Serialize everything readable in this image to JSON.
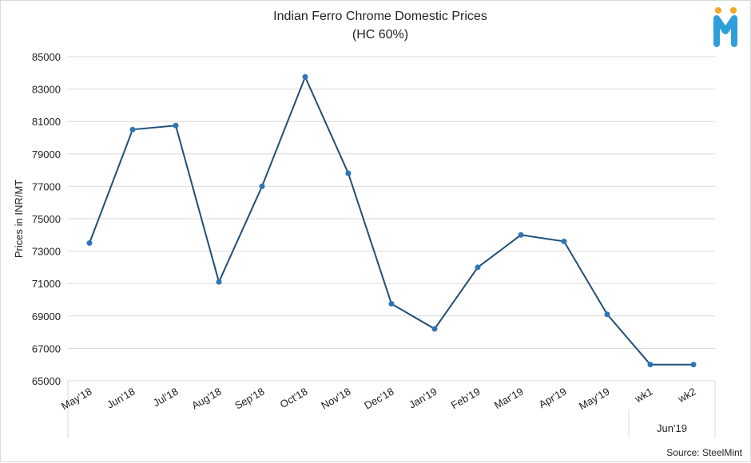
{
  "chart_data": {
    "type": "line",
    "title": "Indian Ferro Chrome Domestic Prices",
    "subtitle": "(HC 60%)",
    "ylabel": "Prices in INR/MT",
    "xlabel": "",
    "ylim": [
      65000,
      85000
    ],
    "yticks": [
      65000,
      67000,
      69000,
      71000,
      73000,
      75000,
      77000,
      79000,
      81000,
      83000,
      85000
    ],
    "grid": true,
    "categories": [
      "May'18",
      "Jun'18",
      "Jul'18",
      "Aug'18",
      "Sep'18",
      "Oct'18",
      "Nov'18",
      "Dec'18",
      "Jan'19",
      "Feb'19",
      "Mar'19",
      "Apr'19",
      "May'19",
      "wk1",
      "wk2"
    ],
    "category_group": {
      "label": "Jun'19",
      "members": [
        "wk1",
        "wk2"
      ]
    },
    "values": [
      73500,
      80500,
      80750,
      71100,
      77000,
      83750,
      77800,
      69750,
      68200,
      72000,
      74000,
      73600,
      69100,
      66000,
      66000
    ],
    "line_color": "#1f4e79",
    "marker_color": "#2e75b6"
  },
  "source": "Source: SteelMint",
  "logo": {
    "letter": "M",
    "color": "#2e9fd9",
    "dot_color": "#f5a623"
  }
}
